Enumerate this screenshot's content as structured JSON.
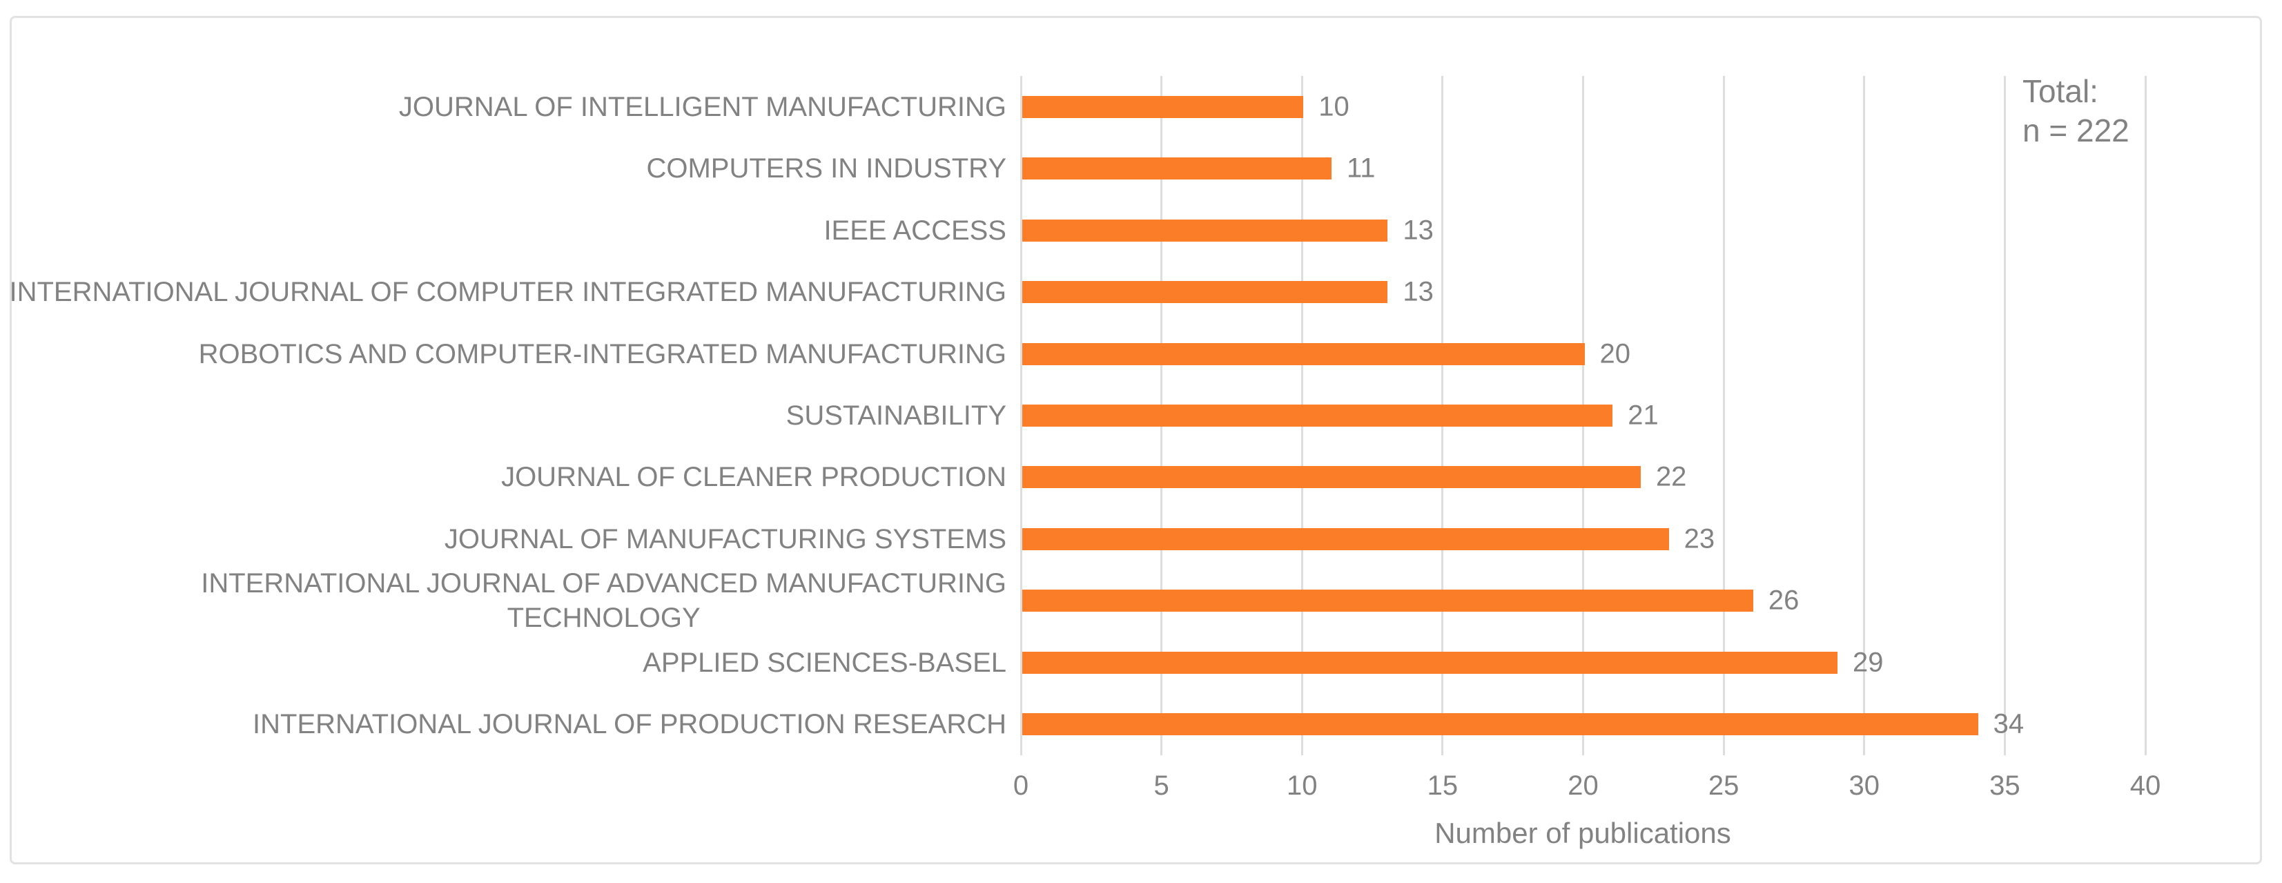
{
  "chart_data": {
    "type": "bar",
    "orientation": "horizontal",
    "title": "",
    "xlabel": "Number of publications",
    "ylabel": "",
    "categories": [
      "JOURNAL OF INTELLIGENT MANUFACTURING",
      "COMPUTERS IN INDUSTRY",
      "IEEE ACCESS",
      "INTERNATIONAL JOURNAL OF COMPUTER INTEGRATED MANUFACTURING",
      "ROBOTICS AND COMPUTER-INTEGRATED MANUFACTURING",
      "SUSTAINABILITY",
      "JOURNAL OF CLEANER PRODUCTION",
      "JOURNAL OF MANUFACTURING SYSTEMS",
      "INTERNATIONAL JOURNAL OF ADVANCED MANUFACTURING\nTECHNOLOGY",
      "APPLIED SCIENCES-BASEL",
      "INTERNATIONAL JOURNAL OF PRODUCTION RESEARCH"
    ],
    "values": [
      10,
      11,
      13,
      13,
      20,
      21,
      22,
      23,
      26,
      29,
      34
    ],
    "data_labels_shown": true,
    "x_ticks": [
      0,
      5,
      10,
      15,
      20,
      25,
      30,
      35,
      40
    ],
    "xlim": [
      0,
      40
    ],
    "annotation": "Total:\nn = 222",
    "grid": "vertical-major",
    "legend": "none",
    "bar_color": "#fb7d28",
    "text_color": "#828282",
    "gridline_color": "#dddddd",
    "frame_border_color": "#e2e2e2"
  }
}
